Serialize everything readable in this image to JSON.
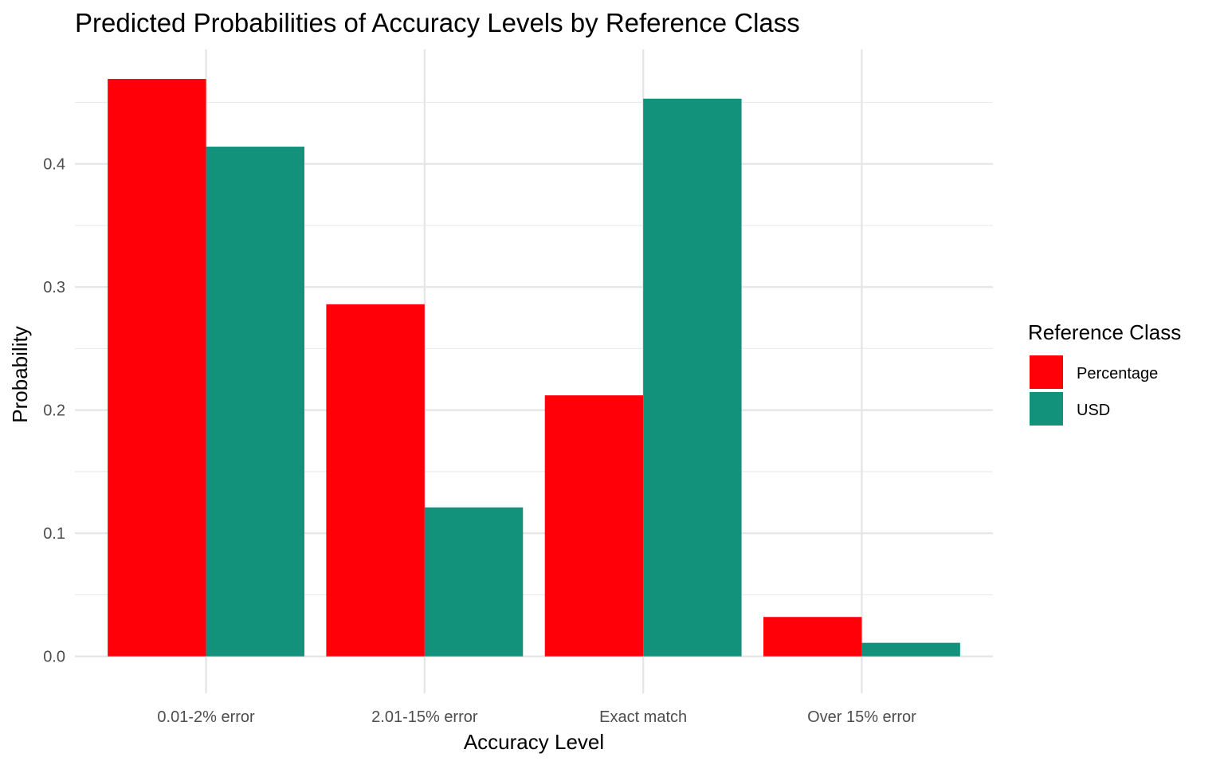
{
  "chart_data": {
    "type": "bar",
    "title": "Predicted Probabilities of Accuracy Levels by Reference Class",
    "xlabel": "Accuracy Level",
    "ylabel": "Probability",
    "categories": [
      "0.01-2% error",
      "2.01-15% error",
      "Exact match",
      "Over 15% error"
    ],
    "series": [
      {
        "name": "Percentage",
        "color": "#ff0008",
        "values": [
          0.469,
          0.286,
          0.212,
          0.032
        ]
      },
      {
        "name": "USD",
        "color": "#12927a",
        "values": [
          0.414,
          0.121,
          0.453,
          0.011
        ]
      }
    ],
    "yticks": [
      0.0,
      0.1,
      0.2,
      0.3,
      0.4
    ],
    "ytick_labels": [
      "0.0",
      "0.1",
      "0.2",
      "0.3",
      "0.4"
    ],
    "ylim": [
      -0.03,
      0.493
    ],
    "grid": true,
    "barmode": "grouped",
    "legend": {
      "title": "Reference Class",
      "position": "right"
    }
  }
}
